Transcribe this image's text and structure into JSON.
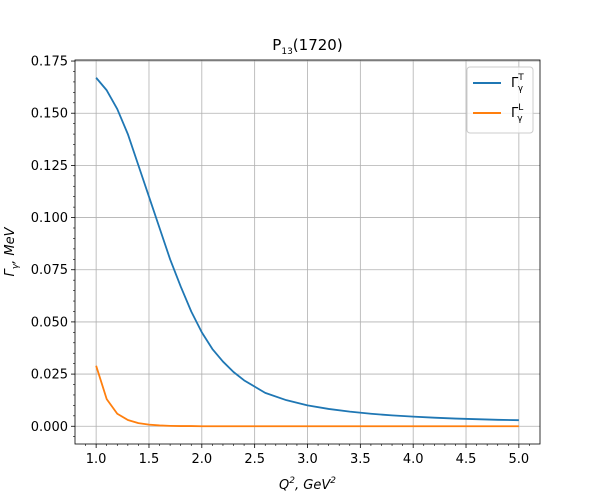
{
  "chart_data": {
    "type": "line",
    "title": {
      "base": "P",
      "sub": "13",
      "rest": "(1720)"
    },
    "xlabel": {
      "base": "Q",
      "sup": "2",
      "mid": ", GeV",
      "sup2": "2"
    },
    "ylabel": {
      "base": "Γ",
      "sub": "γ",
      "rest": ", MeV"
    },
    "xlim": [
      0.8,
      5.2
    ],
    "ylim": [
      -0.0085,
      0.1755
    ],
    "xticks": [
      1.0,
      1.5,
      2.0,
      2.5,
      3.0,
      3.5,
      4.0,
      4.5,
      5.0
    ],
    "xtick_labels": [
      "1.0",
      "1.5",
      "2.0",
      "2.5",
      "3.0",
      "3.5",
      "4.0",
      "4.5",
      "5.0"
    ],
    "yticks": [
      0.0,
      0.025,
      0.05,
      0.075,
      0.1,
      0.125,
      0.15,
      0.175
    ],
    "ytick_labels": [
      "0.000",
      "0.025",
      "0.050",
      "0.075",
      "0.100",
      "0.125",
      "0.150",
      "0.175"
    ],
    "grid": true,
    "legend_position": "top-right",
    "series": [
      {
        "name": {
          "base": "Γ",
          "sub": "γ",
          "sup": "T"
        },
        "color": "#1f77b4",
        "x": [
          1.0,
          1.1,
          1.2,
          1.3,
          1.4,
          1.5,
          1.6,
          1.7,
          1.8,
          1.9,
          2.0,
          2.1,
          2.2,
          2.3,
          2.4,
          2.5,
          2.6,
          2.8,
          3.0,
          3.2,
          3.4,
          3.6,
          3.8,
          4.0,
          4.2,
          4.4,
          4.6,
          4.8,
          5.0
        ],
        "y": [
          0.167,
          0.161,
          0.152,
          0.14,
          0.125,
          0.11,
          0.095,
          0.08,
          0.067,
          0.055,
          0.045,
          0.037,
          0.031,
          0.026,
          0.022,
          0.019,
          0.016,
          0.0125,
          0.01,
          0.0083,
          0.007,
          0.006,
          0.0052,
          0.0046,
          0.0041,
          0.0037,
          0.0034,
          0.0031,
          0.0029
        ]
      },
      {
        "name": {
          "base": "Γ",
          "sub": "γ",
          "sup": "L"
        },
        "color": "#ff7f0e",
        "x": [
          1.0,
          1.1,
          1.2,
          1.3,
          1.4,
          1.5,
          1.6,
          1.7,
          1.8,
          1.9,
          2.0,
          2.5,
          3.0,
          3.5,
          4.0,
          4.5,
          5.0
        ],
        "y": [
          0.029,
          0.013,
          0.006,
          0.003,
          0.0015,
          0.0008,
          0.0004,
          0.0002,
          0.0001,
          0.0001,
          0.0,
          0.0,
          0.0,
          0.0,
          0.0,
          0.0,
          0.0
        ]
      }
    ]
  }
}
